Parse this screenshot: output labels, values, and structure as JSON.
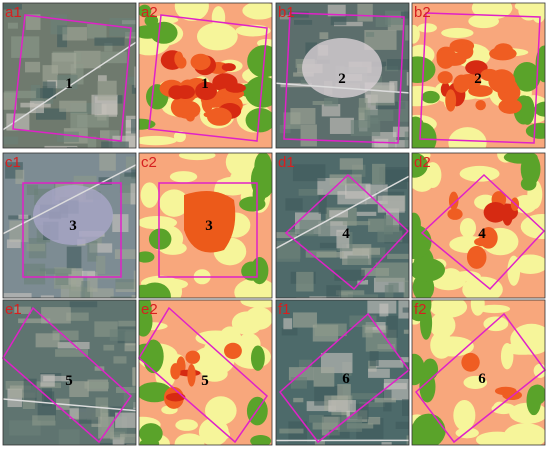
{
  "panels": [
    {
      "label": "a1",
      "number": 1
    },
    {
      "label": "a2",
      "number": 1
    },
    {
      "label": "b1",
      "number": 2
    },
    {
      "label": "b2",
      "number": 2
    },
    {
      "label": "c1",
      "number": 3
    },
    {
      "label": "c2",
      "number": 3
    },
    {
      "label": "d1",
      "number": 4
    },
    {
      "label": "d2",
      "number": 4
    },
    {
      "label": "e1",
      "number": 5
    },
    {
      "label": "e2",
      "number": 5
    },
    {
      "label": "f1",
      "number": 6
    },
    {
      "label": "f2",
      "number": 6
    }
  ]
}
